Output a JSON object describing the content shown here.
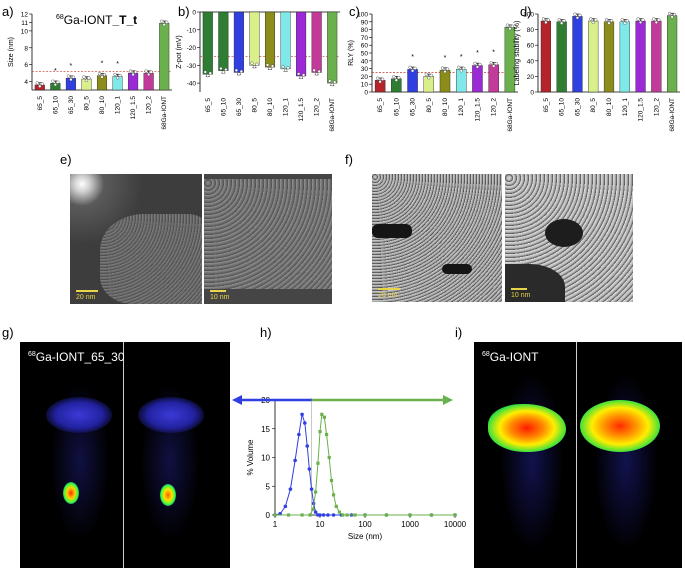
{
  "panels": {
    "a": {
      "label": "a)",
      "title_sup": "68",
      "title_main": "Ga-IONT",
      "title_bold": "_T_t",
      "ylabel": "Size (nm)"
    },
    "b": {
      "label": "b)",
      "ylabel": "Z-pot (mV)"
    },
    "c": {
      "label": "c)",
      "ylabel": "RLY (%)"
    },
    "d": {
      "label": "d)",
      "ylabel": "Labeling stability (%)"
    },
    "e": {
      "label": "e)",
      "scale1": "20 nm",
      "scale2": "10 nm"
    },
    "f": {
      "label": "f)",
      "scale1": "20 nm",
      "scale2": "10 nm"
    },
    "g": {
      "label": "g)",
      "title_sup": "68",
      "title_main": "Ga-IONT_65_30"
    },
    "h": {
      "label": "h)"
    },
    "i": {
      "label": "i)",
      "title_sup": "68",
      "title_main": "Ga-IONT"
    }
  },
  "chart_data": [
    {
      "panel": "a",
      "type": "bar",
      "categories": [
        "65_5",
        "65_10",
        "65_30",
        "80_5",
        "80_10",
        "120_1",
        "120_1.5",
        "120_2",
        "68Ga-IONT"
      ],
      "values": [
        3.6,
        3.8,
        4.4,
        4.3,
        4.7,
        4.6,
        5.0,
        5.0,
        10.9
      ],
      "ylabel": "Size (nm)",
      "ylim": [
        3,
        12
      ],
      "yticks": [
        4,
        6,
        8,
        10,
        11,
        12
      ],
      "significance": [
        false,
        true,
        true,
        false,
        true,
        true,
        false,
        false,
        false
      ],
      "reference_line": 5.2,
      "colors": [
        "#b5242b",
        "#2e7d32",
        "#2f3fe0",
        "#d9f08a",
        "#8c8c1a",
        "#7fe8e8",
        "#9b2ad6",
        "#c23a9a",
        "#6ab04c"
      ]
    },
    {
      "panel": "b",
      "type": "bar",
      "categories": [
        "65_5",
        "65_10",
        "65_30",
        "80_5",
        "80_10",
        "120_1",
        "120_1.5",
        "120_2",
        "68Ga-IONT"
      ],
      "values": [
        -35,
        -33,
        -34,
        -30,
        -31,
        -32,
        -36,
        -34,
        -40
      ],
      "ylabel": "Z-pot (mV)",
      "ylim": [
        -45,
        0
      ],
      "yticks": [
        0,
        -10,
        -20,
        -30,
        -40
      ],
      "reference_line": -25,
      "colors": [
        "#2e7d32",
        "#2e7d32",
        "#2f3fe0",
        "#d9f08a",
        "#8c8c1a",
        "#7fe8e8",
        "#9b2ad6",
        "#c23a9a",
        "#6ab04c"
      ]
    },
    {
      "panel": "c",
      "type": "bar",
      "categories": [
        "65_5",
        "65_10",
        "65_30",
        "80_5",
        "80_10",
        "120_1",
        "120_1.5",
        "120_2",
        "68Ga-IONT"
      ],
      "values": [
        15,
        17,
        29,
        20,
        28,
        29,
        34,
        35,
        83
      ],
      "ylabel": "RLY (%)",
      "ylim": [
        0,
        100
      ],
      "yticks": [
        0,
        10,
        20,
        30,
        40,
        50,
        60,
        70,
        80,
        90,
        100
      ],
      "significance": [
        false,
        false,
        true,
        false,
        true,
        true,
        true,
        true,
        false
      ],
      "reference_line": 25,
      "colors": [
        "#b5242b",
        "#2e7d32",
        "#2f3fe0",
        "#d9f08a",
        "#8c8c1a",
        "#7fe8e8",
        "#9b2ad6",
        "#c23a9a",
        "#6ab04c"
      ]
    },
    {
      "panel": "d",
      "type": "bar",
      "categories": [
        "65_5",
        "65_10",
        "65_30",
        "80_5",
        "80_10",
        "120_1",
        "120_1.5",
        "120_2",
        "68Ga-IONT"
      ],
      "values": [
        91,
        90,
        97,
        91,
        90,
        90,
        91,
        91,
        98
      ],
      "ylabel": "Labeling stability (%)",
      "ylim": [
        0,
        100
      ],
      "yticks": [
        0,
        20,
        40,
        60,
        80,
        100
      ],
      "colors": [
        "#b5242b",
        "#2e7d32",
        "#2f3fe0",
        "#d9f08a",
        "#8c8c1a",
        "#7fe8e8",
        "#9b2ad6",
        "#c23a9a",
        "#6ab04c"
      ]
    },
    {
      "panel": "h",
      "type": "line",
      "xlabel": "Size (nm)",
      "ylabel": "% Volume",
      "xscale": "log",
      "xlim": [
        1,
        10000
      ],
      "ylim": [
        0,
        20
      ],
      "xticks": [
        1,
        10,
        100,
        1000,
        10000
      ],
      "yticks": [
        0,
        5,
        10,
        15,
        20
      ],
      "series": [
        {
          "color": "#2f3fe0",
          "x": [
            1,
            1.3,
            1.7,
            2.2,
            2.8,
            3.4,
            4,
            4.6,
            5.2,
            5.8,
            6.5,
            7.2,
            8,
            9,
            10,
            12,
            15,
            20,
            30,
            50,
            100,
            300,
            1000,
            3000,
            10000
          ],
          "y": [
            0,
            0.2,
            1.5,
            4.5,
            9.5,
            14,
            17.5,
            16,
            12,
            8,
            4.5,
            2,
            0.5,
            0,
            0,
            0,
            0,
            0,
            0,
            0,
            0,
            0,
            0,
            0,
            0
          ]
        },
        {
          "color": "#6ab04c",
          "x": [
            1,
            2,
            4,
            6,
            7,
            8,
            9,
            10,
            11,
            12.5,
            14,
            16,
            18,
            20,
            23,
            27,
            32,
            40,
            60,
            100,
            300,
            1000,
            3000,
            10000
          ],
          "y": [
            0,
            0,
            0,
            0,
            1,
            4,
            9,
            14.5,
            17.5,
            17,
            14,
            10,
            6,
            3.5,
            1.5,
            0.5,
            0,
            0,
            0,
            0,
            0,
            0,
            0,
            0
          ]
        }
      ],
      "vertical_line": 6.5
    }
  ]
}
